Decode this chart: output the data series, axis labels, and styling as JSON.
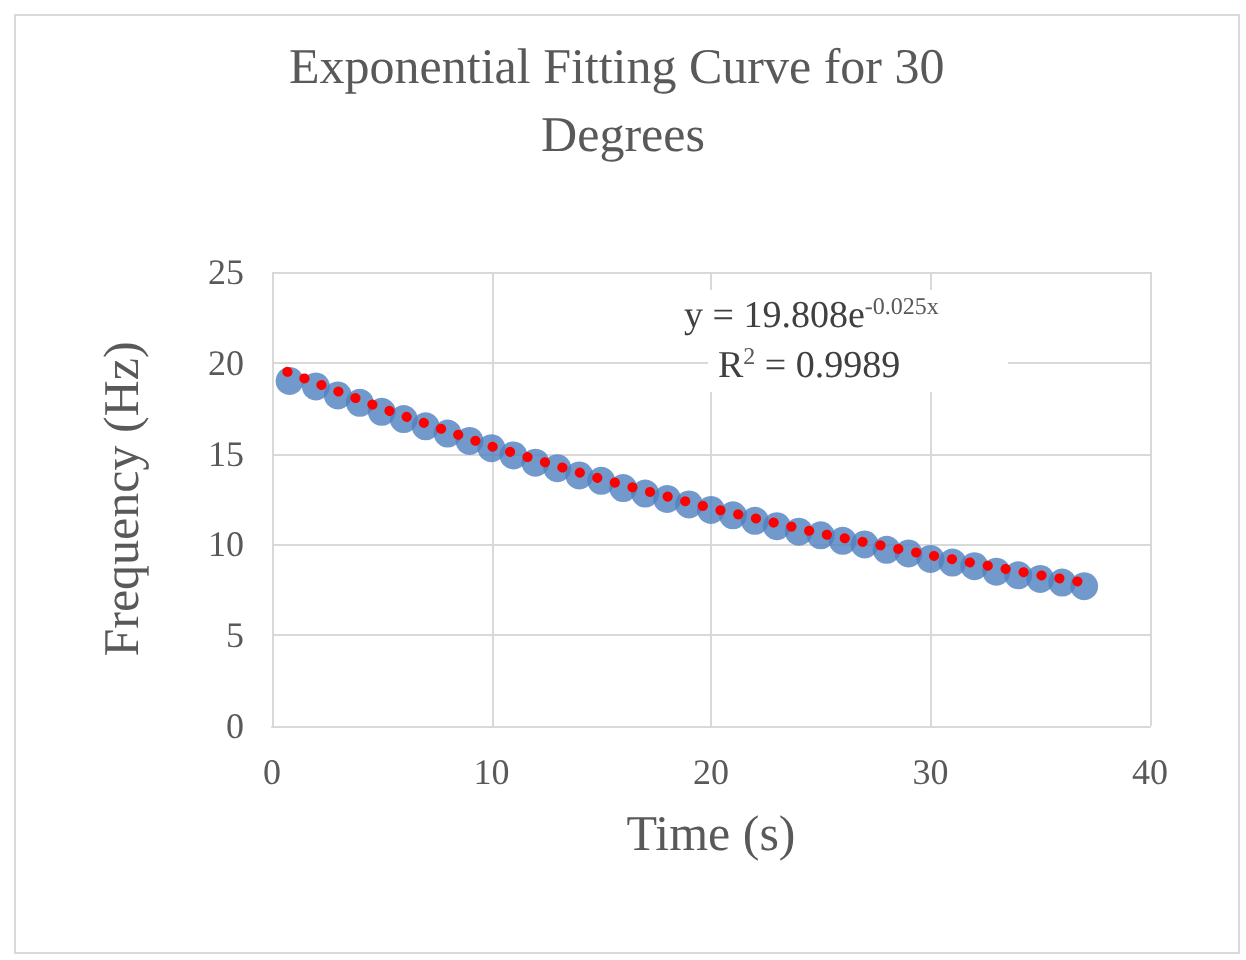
{
  "chart_data": {
    "type": "scatter",
    "title": "Exponential Fitting Curve for 30 Degrees",
    "xlabel": "Time (s)",
    "ylabel": "Frequency (Hz)",
    "xlim": [
      0,
      40
    ],
    "xticks": [
      0,
      10,
      20,
      30,
      40
    ],
    "ylim": [
      0,
      25
    ],
    "yticks": [
      0,
      5,
      10,
      15,
      20,
      25
    ],
    "grid": true,
    "marker": "circle",
    "annotations": [
      "y = 19.808e$^{-0.025x}$",
      "R$^{2}$ = 0.9989"
    ],
    "series": [
      {
        "color": "#4f7fbf",
        "x": [
          0.8,
          2,
          3,
          4,
          5,
          6,
          7,
          8,
          9,
          10,
          11,
          12,
          13,
          14,
          15,
          16,
          17,
          18,
          19,
          20,
          21,
          22,
          23,
          24,
          25,
          26,
          27,
          28,
          29,
          30,
          31,
          32,
          33,
          34,
          35,
          36,
          37
        ],
        "values": [
          19.0,
          18.7,
          18.2,
          17.8,
          17.3,
          16.9,
          16.5,
          16.1,
          15.7,
          15.3,
          14.9,
          14.5,
          14.2,
          13.8,
          13.5,
          13.1,
          12.8,
          12.5,
          12.2,
          11.9,
          11.6,
          11.3,
          11.0,
          10.7,
          10.5,
          10.2,
          10.0,
          9.7,
          9.5,
          9.2,
          9.0,
          8.8,
          8.5,
          8.3,
          8.1,
          7.9,
          7.7
        ]
      },
      {
        "type": "line",
        "color": "#ff0000",
        "line_style": "dotted",
        "marker": "none",
        "x": [
          0.7,
          5,
          10,
          15,
          20,
          25,
          30,
          35,
          37
        ],
        "values": [
          19.5,
          17.5,
          15.4,
          13.6,
          12.0,
          10.6,
          9.4,
          8.3,
          7.9
        ]
      }
    ]
  }
}
